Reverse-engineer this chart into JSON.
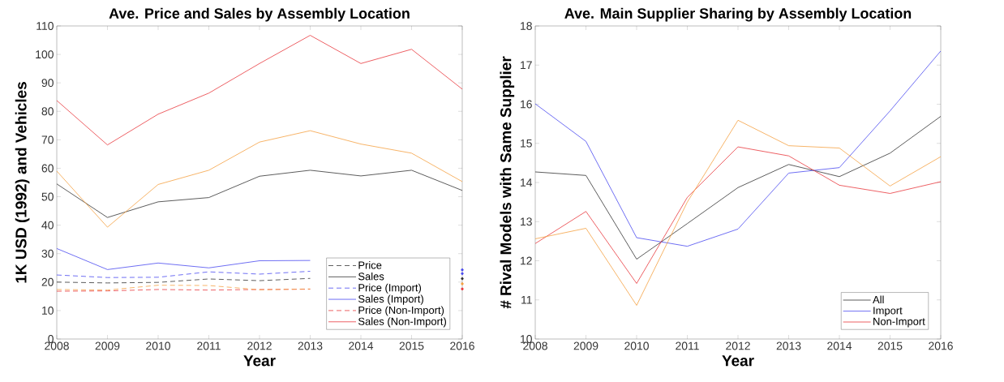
{
  "chart_data": [
    {
      "type": "line",
      "title": "Ave. Price and Sales by Assembly Location",
      "xlabel": "Year",
      "ylabel": "1K USD (1992) and Vehicles",
      "x": [
        2008,
        2009,
        2010,
        2011,
        2012,
        2013,
        2014,
        2015,
        2016
      ],
      "xlim": [
        2008,
        2016
      ],
      "xticks": [
        2008,
        2009,
        2010,
        2011,
        2012,
        2013,
        2014,
        2015,
        2016
      ],
      "ylim": [
        0,
        110
      ],
      "yticks": [
        0,
        10,
        20,
        30,
        40,
        50,
        60,
        70,
        80,
        90,
        100,
        110
      ],
      "legend": "bottom right",
      "series": [
        {
          "name": "Price",
          "color": "#333333",
          "line_style": "dashed",
          "values": [
            20.0,
            19.7,
            19.9,
            21.1,
            20.5,
            21.3,
            null,
            null,
            21.2
          ]
        },
        {
          "name": "Sales",
          "color": "#333333",
          "line_style": "solid",
          "values": [
            54.5,
            42.7,
            48.2,
            49.7,
            57.2,
            59.3,
            57.3,
            59.3,
            52.2
          ]
        },
        {
          "name": "Price (Import)",
          "color": "#4a4af0",
          "line_style": "dashed",
          "values": [
            22.5,
            21.6,
            21.7,
            23.6,
            22.8,
            23.8,
            null,
            null,
            24.3
          ]
        },
        {
          "name": "Sales (Import)",
          "color": "#4a4af0",
          "line_style": "solid",
          "values": [
            31.8,
            24.4,
            26.7,
            25.0,
            27.5,
            27.6,
            null,
            null,
            23.0
          ]
        },
        {
          "name": "Price (Non-Import)",
          "color": "#e8383d",
          "line_style": "dashed",
          "values": [
            16.8,
            16.9,
            17.4,
            17.2,
            17.4,
            17.5,
            null,
            null,
            17.6
          ]
        },
        {
          "name": "Sales (Non-Import)",
          "color": "#e8383d",
          "line_style": "solid",
          "values": [
            83.8,
            68.2,
            79.0,
            86.4,
            96.8,
            106.7,
            96.8,
            101.8,
            87.8
          ]
        },
        {
          "color": "#f5a142",
          "line_style": "dashed",
          "values": [
            17.4,
            17.2,
            18.9,
            18.8,
            17.3,
            17.6,
            null,
            null,
            19.4
          ]
        },
        {
          "color": "#f5a142",
          "line_style": "solid",
          "values": [
            59.0,
            39.3,
            54.3,
            59.3,
            69.2,
            73.2,
            68.5,
            65.3,
            55.3
          ]
        }
      ]
    },
    {
      "type": "line",
      "title": "Ave. Main Supplier Sharing by Assembly Location",
      "xlabel": "Year",
      "ylabel": "# Rival Models with Same Supplier",
      "x": [
        2008,
        2009,
        2010,
        2011,
        2012,
        2013,
        2014,
        2015,
        2016
      ],
      "xlim": [
        2008,
        2016
      ],
      "xticks": [
        2008,
        2009,
        2010,
        2011,
        2012,
        2013,
        2014,
        2015,
        2016
      ],
      "ylim": [
        10,
        18
      ],
      "yticks": [
        10,
        11,
        12,
        13,
        14,
        15,
        16,
        17,
        18
      ],
      "legend": "bottom right",
      "series": [
        {
          "name": "All",
          "color": "#333333",
          "line_style": "solid",
          "values": [
            14.27,
            14.18,
            12.04,
            12.95,
            13.87,
            14.46,
            14.15,
            14.75,
            15.69
          ]
        },
        {
          "name": "Import",
          "color": "#4a4af0",
          "line_style": "solid",
          "values": [
            16.01,
            15.05,
            12.59,
            12.37,
            12.81,
            14.24,
            14.38,
            15.83,
            17.36
          ]
        },
        {
          "name": "Non-Import",
          "color": "#e8383d",
          "line_style": "solid",
          "values": [
            12.44,
            13.26,
            11.42,
            13.62,
            14.91,
            14.68,
            13.93,
            13.72,
            14.02
          ]
        },
        {
          "color": "#f5a142",
          "line_style": "solid",
          "values": [
            12.56,
            12.83,
            10.86,
            13.5,
            15.59,
            14.94,
            14.88,
            13.91,
            14.66
          ]
        }
      ]
    }
  ]
}
